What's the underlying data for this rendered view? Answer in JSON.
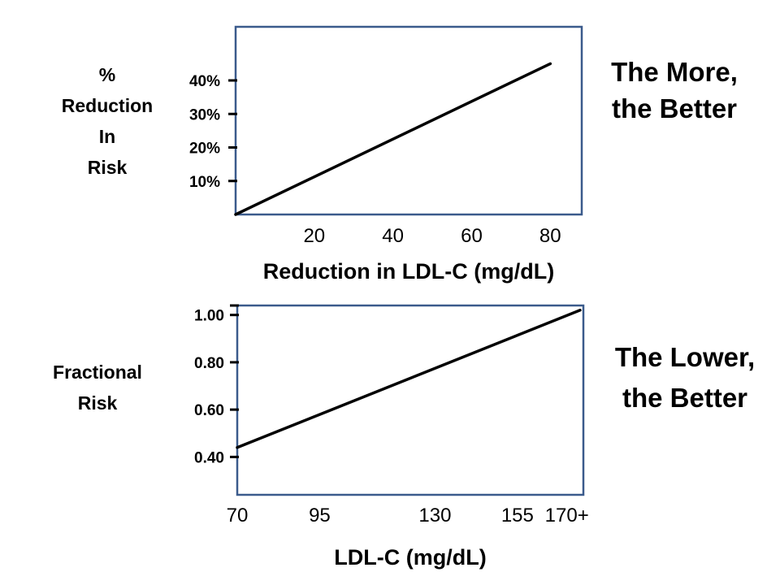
{
  "chart_data": [
    {
      "type": "line",
      "annotation": [
        "The More,",
        "the Better"
      ],
      "ylabel": [
        "%",
        "Reduction",
        "In",
        "Risk"
      ],
      "xlabel": "Reduction in LDL-C (mg/dL)",
      "xticks": [
        {
          "value": 20,
          "label": "20"
        },
        {
          "value": 40,
          "label": "40"
        },
        {
          "value": 60,
          "label": "60"
        },
        {
          "value": 80,
          "label": "80"
        }
      ],
      "yticks": [
        {
          "value": 10,
          "label": "10%"
        },
        {
          "value": 20,
          "label": "20%"
        },
        {
          "value": 30,
          "label": "30%"
        },
        {
          "value": 40,
          "label": "40%"
        }
      ],
      "xlim": [
        0,
        88
      ],
      "ylim": [
        0,
        56
      ],
      "series": [
        {
          "x": [
            0,
            80
          ],
          "y": [
            0,
            45
          ]
        }
      ]
    },
    {
      "type": "line",
      "annotation": [
        "The Lower,",
        "the Better"
      ],
      "ylabel": [
        "Fractional",
        "Risk"
      ],
      "xlabel": "LDL-C (mg/dL)",
      "xticks": [
        {
          "value": 70,
          "label": "70"
        },
        {
          "value": 95,
          "label": "95"
        },
        {
          "value": 130,
          "label": "130"
        },
        {
          "value": 155,
          "label": "155"
        },
        {
          "value": 170,
          "label": "170+"
        }
      ],
      "yticks": [
        {
          "value": 0.4,
          "label": "0.40"
        },
        {
          "value": 0.6,
          "label": "0.60"
        },
        {
          "value": 0.8,
          "label": "0.80"
        },
        {
          "value": 1.0,
          "label": "1.00"
        }
      ],
      "xlim": [
        70,
        175
      ],
      "ylim": [
        0.24,
        1.04
      ],
      "series": [
        {
          "x": [
            70,
            174
          ],
          "y": [
            0.44,
            1.02
          ]
        }
      ]
    }
  ]
}
